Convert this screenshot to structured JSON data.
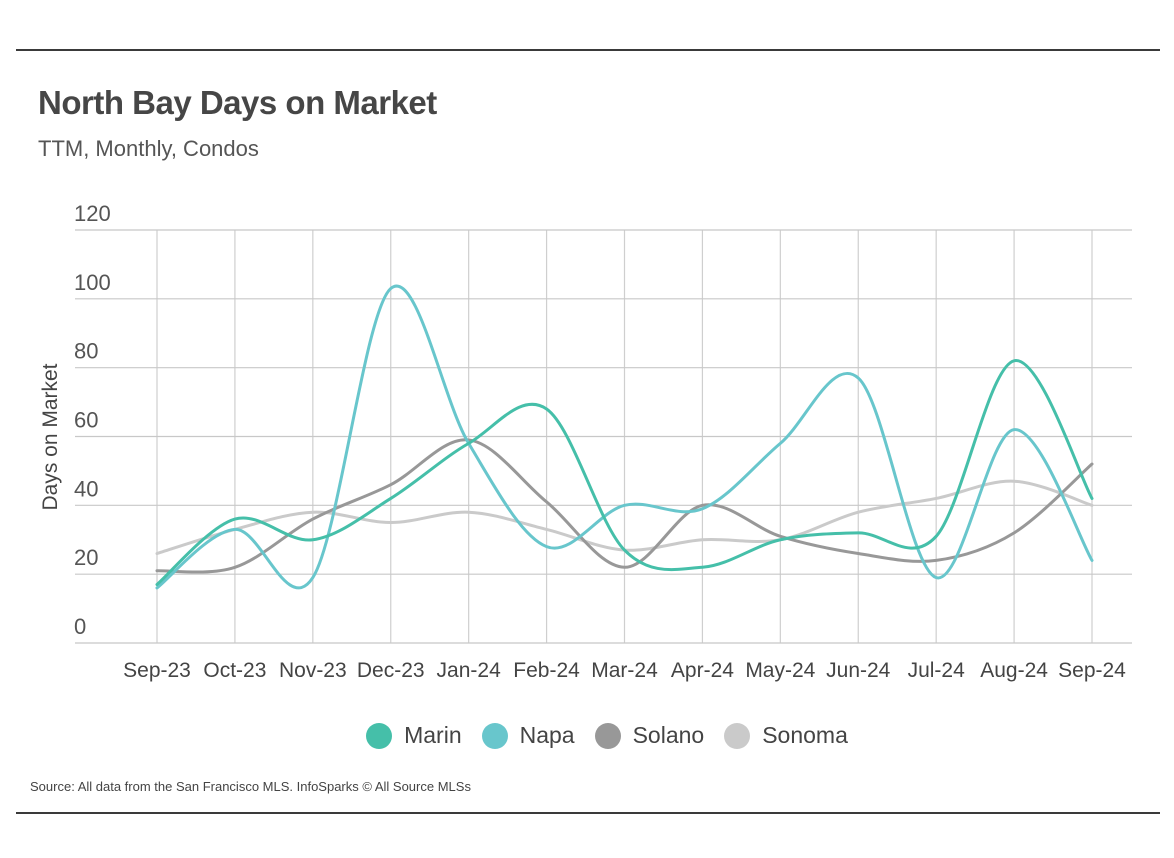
{
  "header": {
    "title": "North Bay Days on Market",
    "subtitle": "TTM, Monthly, Condos"
  },
  "footer": {
    "source": "Source:  All data from the San Francisco MLS. InfoSparks © All Source MLSs"
  },
  "chart_data": {
    "type": "line",
    "title": "North Bay Days on Market",
    "subtitle": "TTM, Monthly, Condos",
    "xlabel": "",
    "ylabel": "Days on Market",
    "ylim": [
      0,
      120
    ],
    "yticks": [
      0,
      20,
      40,
      60,
      80,
      100,
      120
    ],
    "grid": true,
    "legend_position": "bottom",
    "categories": [
      "Sep-23",
      "Oct-23",
      "Nov-23",
      "Dec-23",
      "Jan-24",
      "Feb-24",
      "Mar-24",
      "Apr-24",
      "May-24",
      "Jun-24",
      "Jul-24",
      "Aug-24",
      "Sep-24"
    ],
    "series": [
      {
        "name": "Marin",
        "color": "#45bfa9",
        "values": [
          17,
          36,
          30,
          42,
          58,
          68,
          27,
          22,
          30,
          32,
          31,
          82,
          42
        ]
      },
      {
        "name": "Napa",
        "color": "#68c6cc",
        "values": [
          16,
          33,
          19,
          103,
          58,
          28,
          40,
          39,
          58,
          77,
          19,
          62,
          24
        ]
      },
      {
        "name": "Solano",
        "color": "#989898",
        "values": [
          21,
          22,
          36,
          46,
          59,
          41,
          22,
          40,
          31,
          26,
          24,
          32,
          52
        ]
      },
      {
        "name": "Sonoma",
        "color": "#cacaca",
        "values": [
          26,
          33,
          38,
          35,
          38,
          33,
          27,
          30,
          30,
          38,
          42,
          47,
          40
        ]
      }
    ]
  }
}
